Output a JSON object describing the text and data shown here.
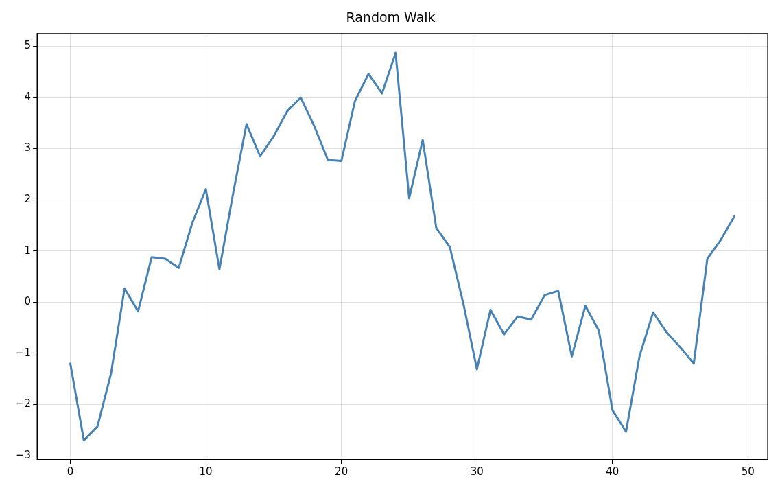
{
  "chart_data": {
    "type": "line",
    "title": "Random Walk",
    "x": [
      0,
      1,
      2,
      3,
      4,
      5,
      6,
      7,
      8,
      9,
      10,
      11,
      12,
      13,
      14,
      15,
      16,
      17,
      18,
      19,
      20,
      21,
      22,
      23,
      24,
      25,
      26,
      27,
      28,
      29,
      30,
      31,
      32,
      33,
      34,
      35,
      36,
      37,
      38,
      39,
      40,
      41,
      42,
      43,
      44,
      45,
      46,
      47,
      48,
      49
    ],
    "series": [
      {
        "color": "#4682b4",
        "values": [
          -1.2,
          -2.7,
          -2.43,
          -1.4,
          0.27,
          -0.18,
          0.88,
          0.85,
          0.67,
          1.55,
          2.21,
          0.64,
          2.11,
          3.48,
          2.85,
          3.24,
          3.73,
          4.0,
          3.44,
          2.78,
          2.76,
          3.93,
          4.46,
          4.08,
          4.87,
          2.03,
          3.17,
          1.45,
          1.08,
          -0.03,
          -1.31,
          -0.15,
          -0.63,
          -0.28,
          -0.34,
          0.14,
          0.22,
          -1.06,
          -0.07,
          -0.56,
          -2.11,
          -2.53,
          -1.05,
          -0.2,
          -0.59,
          -0.88,
          -1.2,
          0.85,
          1.22,
          1.68
        ]
      }
    ],
    "xlim": [
      -2.45,
      51.45
    ],
    "xticks": [
      0,
      10,
      20,
      30,
      40,
      50
    ],
    "ylim": [
      -3.08,
      5.25
    ],
    "yticks": [
      -3,
      -2,
      -1,
      0,
      1,
      2,
      3,
      4,
      5
    ],
    "grid": true,
    "legend": false,
    "marker": "none",
    "line_style": "solid"
  }
}
